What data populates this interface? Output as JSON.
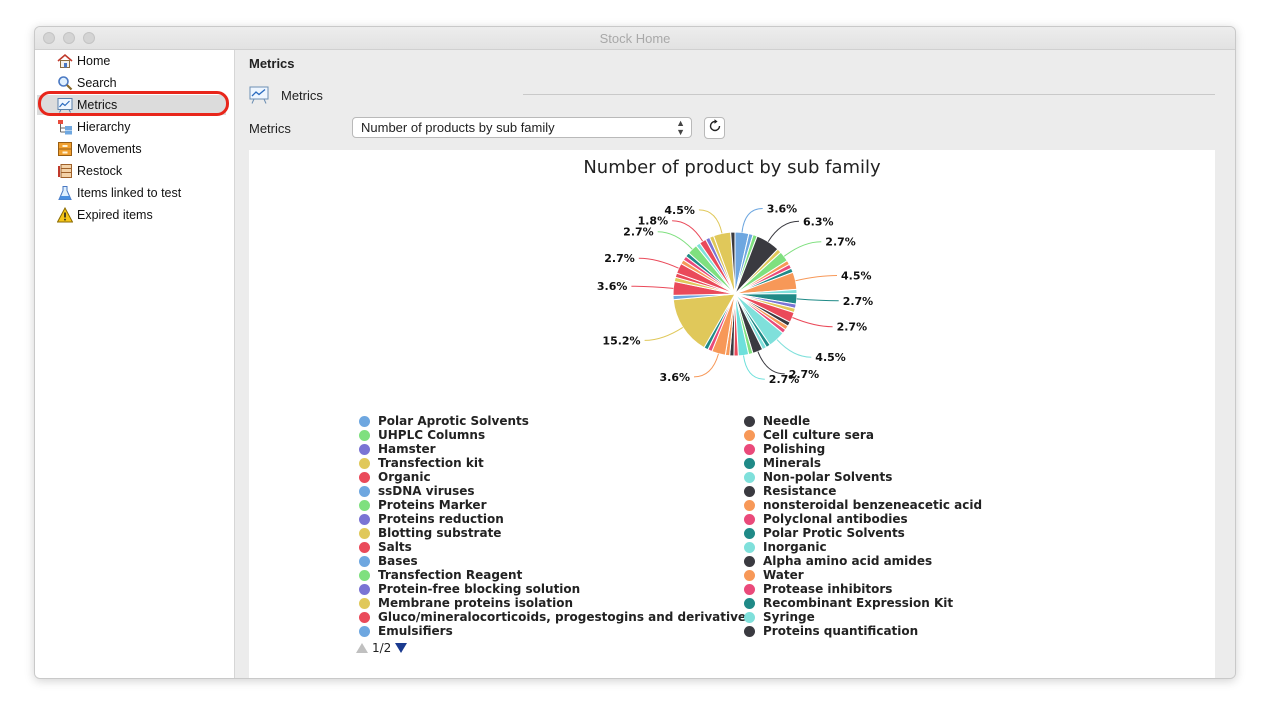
{
  "window": {
    "title": "Stock Home"
  },
  "sidebar": {
    "items": [
      {
        "label": "Home",
        "icon": "house-icon"
      },
      {
        "label": "Search",
        "icon": "magnifier-icon"
      },
      {
        "label": "Metrics",
        "icon": "chart-board-icon",
        "selected": true
      },
      {
        "label": "Hierarchy",
        "icon": "hierarchy-icon"
      },
      {
        "label": "Movements",
        "icon": "boxes-icon"
      },
      {
        "label": "Restock",
        "icon": "restock-icon"
      },
      {
        "label": "Items linked to test",
        "icon": "flask-icon"
      },
      {
        "label": "Expired items",
        "icon": "warning-icon"
      }
    ]
  },
  "main": {
    "title": "Metrics",
    "section_label": "Metrics",
    "metrics_label": "Metrics",
    "selected_metric": "Number of products by sub family"
  },
  "chart_data": {
    "type": "pie",
    "title": "Number of product by sub family",
    "labeled_slices": [
      {
        "label": "3.6%",
        "value": 3.6,
        "color": "#6ea7e0"
      },
      {
        "label": "6.3%",
        "value": 6.3,
        "color": "#3a3a40"
      },
      {
        "label": "2.7%",
        "value": 2.7,
        "color": "#7fe07f"
      },
      {
        "label": "4.5%",
        "value": 4.5,
        "color": "#f79858"
      },
      {
        "label": "2.7%",
        "value": 2.7,
        "color": "#1f8a87"
      },
      {
        "label": "2.7%",
        "value": 2.7,
        "color": "#ea4a5a"
      },
      {
        "label": "4.5%",
        "value": 4.5,
        "color": "#7fe0db"
      },
      {
        "label": "2.7%",
        "value": 2.7,
        "color": "#3a3a40"
      },
      {
        "label": "2.7%",
        "value": 2.7,
        "color": "#6ee0db"
      },
      {
        "label": "3.6%",
        "value": 3.6,
        "color": "#f79858"
      },
      {
        "label": "15.2%",
        "value": 15.2,
        "color": "#e0c85a"
      },
      {
        "label": "3.6%",
        "value": 3.6,
        "color": "#ea4a5a"
      },
      {
        "label": "2.7%",
        "value": 2.7,
        "color": "#ea4a5a"
      },
      {
        "label": "2.7%",
        "value": 2.7,
        "color": "#7fe07f"
      },
      {
        "label": "1.8%",
        "value": 1.8,
        "color": "#ea4a5a"
      },
      {
        "label": "4.5%",
        "value": 4.5,
        "color": "#e0c85a"
      }
    ],
    "legend_left": [
      {
        "name": "Polar Aprotic Solvents",
        "color": "#6ea7e0"
      },
      {
        "name": "UHPLC Columns",
        "color": "#7fe07f"
      },
      {
        "name": "Hamster",
        "color": "#7a74d4"
      },
      {
        "name": "Transfection kit",
        "color": "#e0c85a"
      },
      {
        "name": "Organic",
        "color": "#ea4a5a"
      },
      {
        "name": "ssDNA viruses",
        "color": "#6ea7e0"
      },
      {
        "name": "Proteins Marker",
        "color": "#7fe07f"
      },
      {
        "name": "Proteins reduction",
        "color": "#7a74d4"
      },
      {
        "name": "Blotting substrate",
        "color": "#e0c85a"
      },
      {
        "name": "Salts",
        "color": "#ea4a5a"
      },
      {
        "name": "Bases",
        "color": "#6ea7e0"
      },
      {
        "name": "Transfection Reagent",
        "color": "#7fe07f"
      },
      {
        "name": "Protein-free blocking solution",
        "color": "#7a74d4"
      },
      {
        "name": "Membrane proteins isolation",
        "color": "#e0c85a"
      },
      {
        "name": "Gluco/mineralocorticoids, progestogins and derivatives",
        "color": "#ea4a5a"
      },
      {
        "name": "Emulsifiers",
        "color": "#6ea7e0"
      }
    ],
    "legend_right": [
      {
        "name": "Needle",
        "color": "#3a3a40"
      },
      {
        "name": "Cell culture sera",
        "color": "#f79858"
      },
      {
        "name": "Polishing",
        "color": "#ea4a7a"
      },
      {
        "name": "Minerals",
        "color": "#1f8a87"
      },
      {
        "name": "Non-polar Solvents",
        "color": "#7fe0db"
      },
      {
        "name": "Resistance",
        "color": "#3a3a40"
      },
      {
        "name": "nonsteroidal benzeneacetic acid",
        "color": "#f79858"
      },
      {
        "name": "Polyclonal antibodies",
        "color": "#ea4a7a"
      },
      {
        "name": "Polar Protic Solvents",
        "color": "#1f8a87"
      },
      {
        "name": "Inorganic",
        "color": "#7fe0db"
      },
      {
        "name": "Alpha amino acid amides",
        "color": "#3a3a40"
      },
      {
        "name": "Water",
        "color": "#f79858"
      },
      {
        "name": "Protease inhibitors",
        "color": "#ea4a7a"
      },
      {
        "name": "Recombinant Expression Kit",
        "color": "#1f8a87"
      },
      {
        "name": "Syringe",
        "color": "#7fe0db"
      },
      {
        "name": "Proteins quantification",
        "color": "#3a3a40"
      }
    ],
    "legend_page": "1/2"
  }
}
